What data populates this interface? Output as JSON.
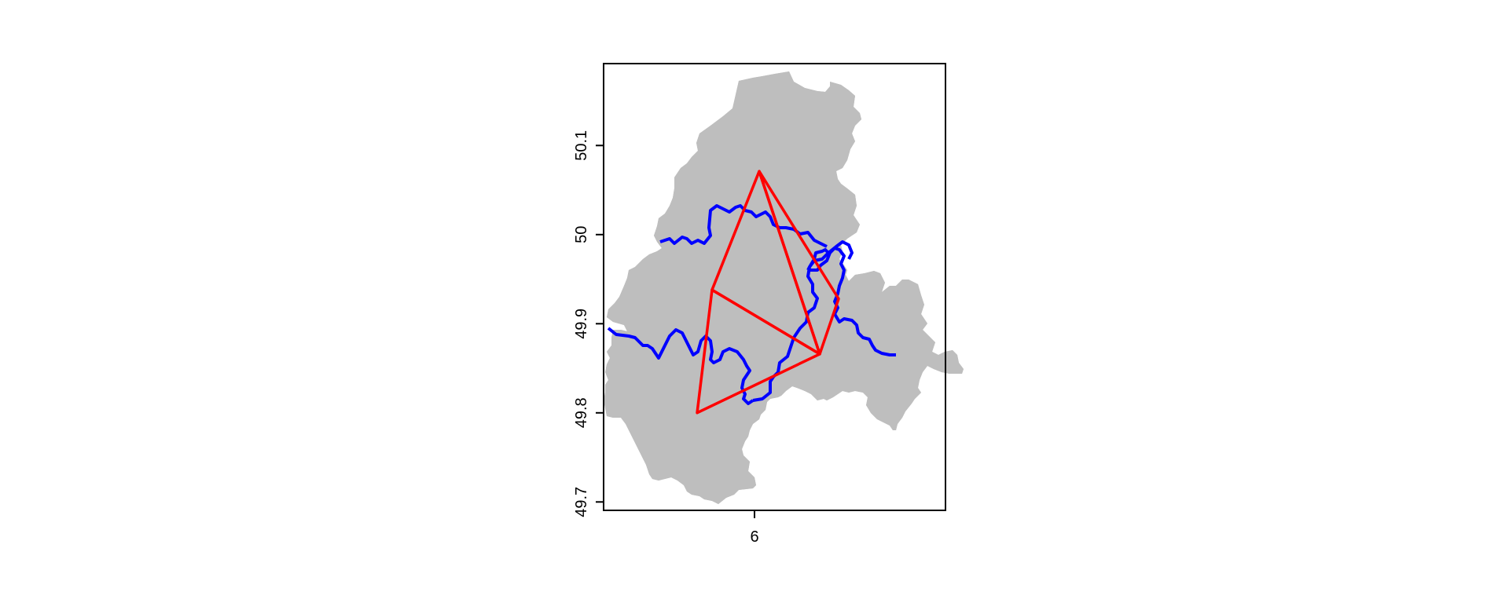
{
  "map": {
    "axes": {
      "x_ticks": [
        6
      ],
      "y_ticks": [
        49.7,
        49.8,
        49.9,
        50,
        50.1
      ],
      "x_tick_labels": [
        "6"
      ],
      "y_tick_labels": [
        "49.7",
        "49.8",
        "49.9",
        "50",
        "50.1"
      ],
      "xlim": [
        5.83,
        6.21
      ],
      "ylim": [
        49.69,
        50.19
      ]
    },
    "colors": {
      "region_fill": "#bebebe",
      "boundary": "#0000ff",
      "triangles": "#ff0000",
      "frame": "#000000"
    },
    "triangle_vertices": [
      {
        "lon": 6.006,
        "lat": 50.071
      },
      {
        "lon": 5.946,
        "lat": 49.938
      },
      {
        "lon": 6.083,
        "lat": 49.866
      },
      {
        "lon": 6.107,
        "lat": 49.928
      },
      {
        "lon": 5.927,
        "lat": 49.8
      }
    ],
    "triangles": [
      [
        0,
        1,
        2
      ],
      [
        0,
        2,
        3
      ],
      [
        1,
        2,
        4
      ]
    ]
  }
}
